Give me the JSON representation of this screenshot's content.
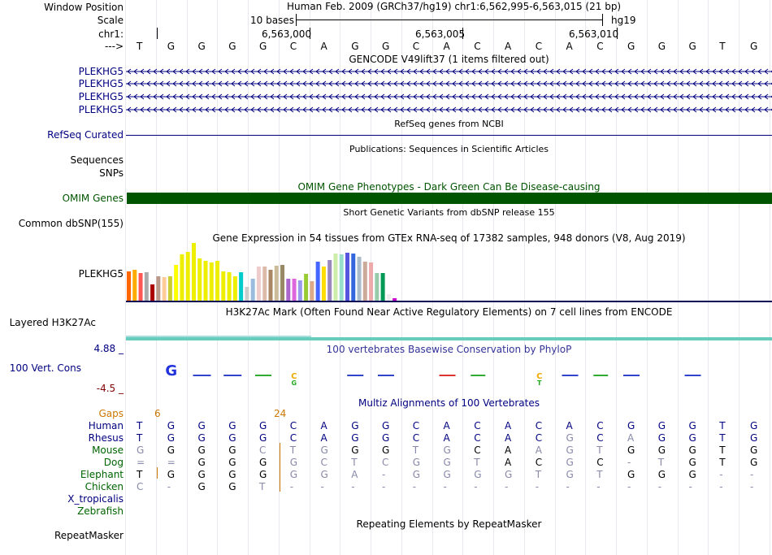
{
  "labels": {
    "window_position": "Window Position",
    "scale": "Scale",
    "chr": "chr1:",
    "arrow": "--->",
    "plekhg5_rows": [
      "PLEKHG5",
      "PLEKHG5",
      "PLEKHG5",
      "PLEKHG5"
    ],
    "refseq": "RefSeq Curated",
    "sequences": "Sequences",
    "snps": "SNPs",
    "omim": "OMIM Genes",
    "common_dbsnp": "Common dbSNP(155)",
    "gtex_gene": "PLEKHG5",
    "layered": "Layered H3K27Ac",
    "cons_label": "100 Vert. Cons",
    "cons_max": "4.88 _",
    "cons_min": "-4.5 _",
    "gaps": "Gaps",
    "species": [
      "Human",
      "Rhesus",
      "Mouse",
      "Dog",
      "Elephant",
      "Chicken",
      "X_tropicalis",
      "Zebrafish"
    ],
    "repeatmasker": "RepeatMasker"
  },
  "header": {
    "assembly": "Human Feb. 2009 (GRCh37/hg19)   chr1:6,562,995-6,563,015 (21 bp)",
    "scale_text": "10 bases",
    "scale_db": "hg19",
    "pos1": "6,563,000",
    "pos2": "6,563,005",
    "pos3": "6,563,010"
  },
  "bases": [
    "T",
    "G",
    "G",
    "G",
    "G",
    "C",
    "A",
    "G",
    "G",
    "C",
    "A",
    "C",
    "A",
    "C",
    "A",
    "C",
    "G",
    "G",
    "G",
    "T",
    "G"
  ],
  "titles": {
    "gencode": "GENCODE V49lift37 (1 items filtered out)",
    "refseq": "RefSeq genes from NCBI",
    "pubs": "Publications: Sequences in Scientific Articles",
    "omim": "OMIM Gene Phenotypes - Dark Green Can Be Disease-causing",
    "dbsnp": "Short Genetic Variants from dbSNP release 155",
    "gtex": "Gene Expression in 54 tissues from GTEx RNA-seq of 17382 samples, 948 donors (V8, Aug 2019)",
    "h3k27": "H3K27Ac Mark (Often Found Near Active Regulatory Elements) on 7 cell lines from ENCODE",
    "phylop": "100 vertebrates Basewise Conservation by PhyloP",
    "multiz": "Multiz Alignments of 100 Vertebrates",
    "repeat": "Repeating Elements by RepeatMasker"
  },
  "gaps": {
    "g1": "6",
    "g2": "24"
  },
  "alignment": {
    "Rhesus": [
      "T",
      "G",
      "G",
      "G",
      "G",
      "C",
      "A",
      "G",
      "G",
      "C",
      "A",
      "C",
      "A",
      "C",
      "G",
      "C",
      "A",
      "G",
      "G",
      "T",
      "G"
    ],
    "Mouse": [
      "G",
      "G",
      "G",
      "G",
      "C",
      "T",
      "G",
      "G",
      "G",
      "T",
      "G",
      "C",
      "A",
      "A",
      "G",
      "T",
      "G",
      "G",
      "G",
      "T",
      "G"
    ],
    "Dog": [
      "=",
      "=",
      "G",
      "G",
      "G",
      "G",
      "C",
      "T",
      "C",
      "G",
      "G",
      "T",
      "A",
      "C",
      "G",
      "C",
      "-",
      "T",
      "G",
      "T",
      "G"
    ],
    "Elephant": [
      "T",
      "G",
      "G",
      "G",
      "G",
      "G",
      "G",
      "A",
      "-",
      "G",
      "G",
      "G",
      "G",
      "T",
      "G",
      "T",
      "G",
      "G",
      "G",
      "-",
      "-"
    ],
    "Chicken": [
      "C",
      "-",
      "G",
      "G",
      "T",
      "-",
      "-",
      "-",
      "-",
      "-",
      "-",
      "-",
      "-",
      "-",
      "-",
      "-",
      "-",
      "-",
      "-",
      "-",
      "-"
    ]
  },
  "gtex_colors": [
    "#FF6600",
    "#FFAA00",
    "#FF5555",
    "#AAAAAA",
    "#AA0000",
    "#BB9988",
    "#FFCC99",
    "#CCCC33",
    "#FFFF00",
    "#EEEE00",
    "#EEEE00",
    "#EEEE00",
    "#EEEE00",
    "#EEEE00",
    "#EEEE00",
    "#EEEE00",
    "#EEEE00",
    "#EEEE00",
    "#EEEE00",
    "#00CCCC",
    "#CCCCCC",
    "#99BBDD",
    "#EECCCC",
    "#DDBBAA",
    "#AA8866",
    "#CCBB99",
    "#998866",
    "#AA66CC",
    "#DD66DD",
    "#9999EE",
    "#99CC33",
    "#DDAA88",
    "#4466FF",
    "#FFDD00",
    "#9988BB",
    "#CCEEAA",
    "#99DDCC",
    "#5555DD",
    "#3366DD",
    "#AABBCC",
    "#CCAA99",
    "#EEAAAA",
    "#99CCAA",
    "#009955",
    "#EEEEEE",
    "#CC00CC"
  ],
  "gtex_values": [
    36,
    38,
    34,
    35,
    20,
    30,
    29,
    30,
    44,
    57,
    60,
    71,
    52,
    49,
    47,
    49,
    36,
    35,
    30,
    35,
    17,
    27,
    42,
    42,
    38,
    43,
    44,
    27,
    27,
    25,
    33,
    24,
    48,
    42,
    50,
    58,
    57,
    59,
    58,
    54,
    48,
    47,
    34,
    34,
    8,
    3
  ],
  "colors": {
    "omim": "#005500",
    "accent": "#000080",
    "gaps": "#CC7700",
    "species_primate": "#000080",
    "species_other": "#006400"
  }
}
